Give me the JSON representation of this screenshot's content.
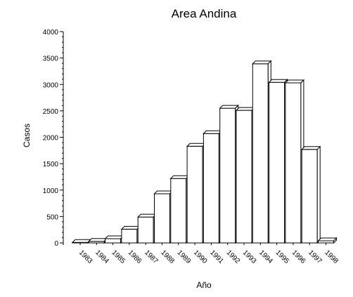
{
  "chart_data": {
    "type": "bar",
    "title": "Area Andina",
    "xlabel": "Año",
    "ylabel": "Casos",
    "categories": [
      "1983",
      "1984",
      "1985",
      "1986",
      "1987",
      "1988",
      "1989",
      "1990",
      "1991",
      "1992",
      "1993",
      "1994",
      "1995",
      "1996",
      "1997",
      "1998"
    ],
    "values": [
      10,
      30,
      80,
      260,
      490,
      930,
      1220,
      1830,
      2070,
      2550,
      2510,
      3390,
      3040,
      3030,
      1770,
      40
    ],
    "ylim": [
      0,
      4000
    ],
    "yticks": [
      "0",
      "500",
      "1000",
      "1500",
      "2000",
      "2500",
      "3000",
      "3500",
      "4000"
    ],
    "grid": false,
    "bar_style": "3d",
    "colors": {
      "bar_fill": "#ffffff",
      "bar_edge": "#000000"
    }
  }
}
